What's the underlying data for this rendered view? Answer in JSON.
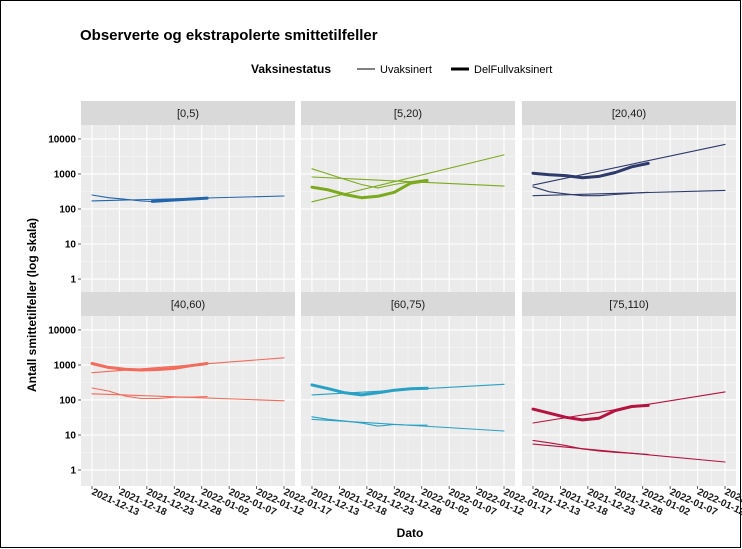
{
  "chart_data": {
    "type": "line",
    "title": "Observerte og ekstrapolerte smittetilfeller",
    "xlabel": "Dato",
    "ylabel": "Antall smittetilfeller (log skala)",
    "y_scale": "log10",
    "ylim": [
      0.35,
      25000
    ],
    "y_ticks": [
      1,
      10,
      100,
      1000,
      10000
    ],
    "y_tick_labels": [
      "1",
      "10",
      "100",
      "1000",
      "10000"
    ],
    "x_ticks": [
      "2021-12-13",
      "2021-12-18",
      "2021-12-23",
      "2021-12-28",
      "2022-01-02",
      "2022-01-07",
      "2022-01-12",
      "2022-01-17"
    ],
    "legend": {
      "title": "Vaksinestatus",
      "position": "top",
      "entries": [
        {
          "label": "Uvaksinert",
          "line": "thin"
        },
        {
          "label": "DelFullvaksinert",
          "line": "thick"
        }
      ]
    },
    "grid": true,
    "panels": [
      {
        "label": "[0,5)",
        "color": "#2166ac",
        "series": [
          {
            "status": "Uvaksinert",
            "kind": "observed",
            "x": [
              "2021-12-13",
              "2021-12-16",
              "2021-12-19",
              "2021-12-22",
              "2021-12-25",
              "2021-12-28",
              "2021-12-31",
              "2022-01-03"
            ],
            "y": [
              250,
              210,
              190,
              170,
              160,
              175,
              190,
              200
            ]
          },
          {
            "status": "Uvaksinert",
            "kind": "extrapolated",
            "x": [
              "2021-12-13",
              "2022-01-17"
            ],
            "y": [
              170,
              235
            ]
          },
          {
            "status": "DelFullvaksinert",
            "kind": "observed",
            "x": [
              "2021-12-24",
              "2021-12-28",
              "2022-01-01",
              "2022-01-03"
            ],
            "y": [
              165,
              180,
              195,
              205
            ]
          }
        ]
      },
      {
        "label": "[5,20)",
        "color": "#7caa1c",
        "series": [
          {
            "status": "Uvaksinert",
            "kind": "observed",
            "x": [
              "2021-12-13",
              "2021-12-16",
              "2021-12-19",
              "2021-12-22",
              "2021-12-25",
              "2021-12-28",
              "2021-12-31",
              "2022-01-03"
            ],
            "y": [
              1400,
              1000,
              700,
              500,
              400,
              500,
              600,
              700
            ]
          },
          {
            "status": "Uvaksinert",
            "kind": "extrapolated",
            "x": [
              "2021-12-13",
              "2022-01-17"
            ],
            "y": [
              820,
              450
            ]
          },
          {
            "status": "DelFullvaksinert",
            "kind": "observed",
            "x": [
              "2021-12-13",
              "2021-12-16",
              "2021-12-19",
              "2021-12-22",
              "2021-12-25",
              "2021-12-28",
              "2021-12-31",
              "2022-01-03"
            ],
            "y": [
              420,
              350,
              260,
              210,
              230,
              300,
              550,
              650
            ]
          },
          {
            "status": "DelFullvaksinert",
            "kind": "extrapolated",
            "x": [
              "2021-12-13",
              "2022-01-17"
            ],
            "y": [
              160,
              3500
            ]
          }
        ]
      },
      {
        "label": "[20,40)",
        "color": "#2e3a6b",
        "series": [
          {
            "status": "Uvaksinert",
            "kind": "observed",
            "x": [
              "2021-12-13",
              "2021-12-16",
              "2021-12-19",
              "2021-12-22",
              "2021-12-25",
              "2021-12-28",
              "2021-12-31",
              "2022-01-03"
            ],
            "y": [
              430,
              310,
              270,
              240,
              240,
              260,
              280,
              300
            ]
          },
          {
            "status": "Uvaksinert",
            "kind": "extrapolated",
            "x": [
              "2021-12-13",
              "2022-01-17"
            ],
            "y": [
              240,
              340
            ]
          },
          {
            "status": "DelFullvaksinert",
            "kind": "observed",
            "x": [
              "2021-12-13",
              "2021-12-16",
              "2021-12-19",
              "2021-12-22",
              "2021-12-25",
              "2021-12-28",
              "2021-12-31",
              "2022-01-03"
            ],
            "y": [
              1050,
              950,
              900,
              780,
              850,
              1100,
              1600,
              2000
            ]
          },
          {
            "status": "DelFullvaksinert",
            "kind": "extrapolated",
            "x": [
              "2021-12-13",
              "2022-01-17"
            ],
            "y": [
              480,
              7000
            ]
          }
        ]
      },
      {
        "label": "[40,60)",
        "color": "#f26b5b",
        "series": [
          {
            "status": "Uvaksinert",
            "kind": "observed",
            "x": [
              "2021-12-13",
              "2021-12-16",
              "2021-12-19",
              "2021-12-22",
              "2021-12-25",
              "2021-12-28",
              "2021-12-31",
              "2022-01-03"
            ],
            "y": [
              220,
              180,
              130,
              110,
              110,
              120,
              120,
              125
            ]
          },
          {
            "status": "Uvaksinert",
            "kind": "extrapolated",
            "x": [
              "2021-12-13",
              "2022-01-17"
            ],
            "y": [
              150,
              95
            ]
          },
          {
            "status": "DelFullvaksinert",
            "kind": "observed",
            "x": [
              "2021-12-13",
              "2021-12-16",
              "2021-12-19",
              "2021-12-22",
              "2021-12-25",
              "2021-12-28",
              "2021-12-31",
              "2022-01-03"
            ],
            "y": [
              1100,
              850,
              750,
              720,
              740,
              800,
              950,
              1100
            ]
          },
          {
            "status": "DelFullvaksinert",
            "kind": "extrapolated",
            "x": [
              "2021-12-13",
              "2022-01-17"
            ],
            "y": [
              600,
              1600
            ]
          }
        ]
      },
      {
        "label": "[60,75)",
        "color": "#29a1c4",
        "series": [
          {
            "status": "Uvaksinert",
            "kind": "observed",
            "x": [
              "2021-12-13",
              "2021-12-16",
              "2021-12-19",
              "2021-12-22",
              "2021-12-25",
              "2021-12-28",
              "2021-12-31",
              "2022-01-03"
            ],
            "y": [
              33,
              28,
              25,
              22,
              18,
              20,
              19,
              19
            ]
          },
          {
            "status": "Uvaksinert",
            "kind": "extrapolated",
            "x": [
              "2021-12-13",
              "2022-01-17"
            ],
            "y": [
              28,
              13
            ]
          },
          {
            "status": "DelFullvaksinert",
            "kind": "observed",
            "x": [
              "2021-12-13",
              "2021-12-16",
              "2021-12-19",
              "2021-12-22",
              "2021-12-25",
              "2021-12-28",
              "2021-12-31",
              "2022-01-03"
            ],
            "y": [
              270,
              210,
              160,
              140,
              160,
              190,
              210,
              215
            ]
          },
          {
            "status": "DelFullvaksinert",
            "kind": "extrapolated",
            "x": [
              "2021-12-13",
              "2022-01-17"
            ],
            "y": [
              140,
              280
            ]
          }
        ]
      },
      {
        "label": "[75,110)",
        "color": "#b5123f",
        "series": [
          {
            "status": "Uvaksinert",
            "kind": "observed",
            "x": [
              "2021-12-13",
              "2021-12-16",
              "2021-12-19",
              "2021-12-22",
              "2021-12-25",
              "2021-12-28",
              "2021-12-31",
              "2022-01-03"
            ],
            "y": [
              7,
              6,
              5,
              4,
              3.5,
              3.2,
              3,
              2.8
            ]
          },
          {
            "status": "Uvaksinert",
            "kind": "extrapolated",
            "x": [
              "2021-12-13",
              "2022-01-17"
            ],
            "y": [
              5.5,
              1.7
            ]
          },
          {
            "status": "DelFullvaksinert",
            "kind": "observed",
            "x": [
              "2021-12-13",
              "2021-12-16",
              "2021-12-19",
              "2021-12-22",
              "2021-12-25",
              "2021-12-28",
              "2021-12-31",
              "2022-01-03"
            ],
            "y": [
              55,
              42,
              32,
              27,
              30,
              50,
              65,
              70
            ]
          },
          {
            "status": "DelFullvaksinert",
            "kind": "extrapolated",
            "x": [
              "2021-12-13",
              "2022-01-17"
            ],
            "y": [
              22,
              170
            ]
          }
        ]
      }
    ]
  }
}
